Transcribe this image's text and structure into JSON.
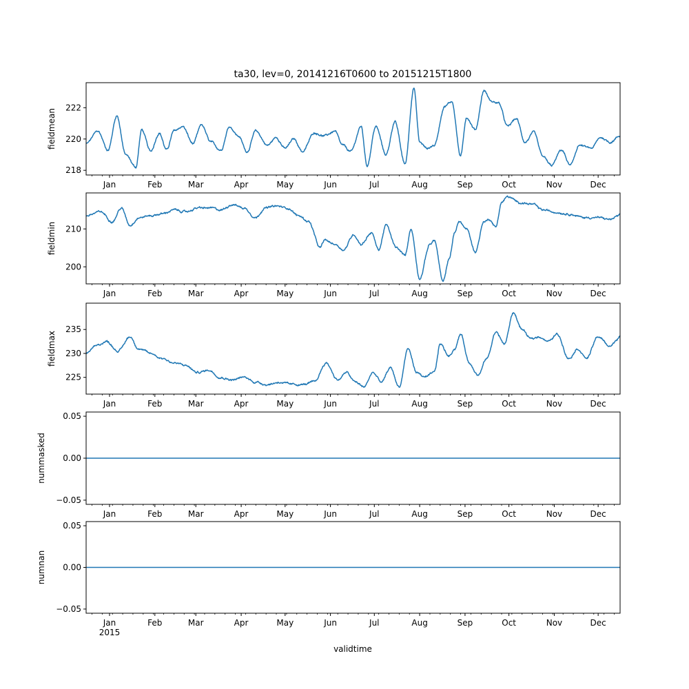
{
  "figure": {
    "title": "ta30, lev=0, 20141216T0600 to 20151215T1800",
    "xlabel": "validtime",
    "year_label": "2015"
  },
  "colors": {
    "line": "#1f77b4",
    "axes": "#000000",
    "background": "#ffffff"
  },
  "chart_data": [
    {
      "type": "line",
      "ylabel": "fieldmean",
      "ylim": [
        217.7,
        223.6
      ],
      "yticks": [
        {
          "v": 218,
          "label": "218"
        },
        {
          "v": 220,
          "label": "220"
        },
        {
          "v": 222,
          "label": "222"
        }
      ],
      "series": [
        {
          "name": "fieldmean",
          "x_day": [
            0,
            8,
            15,
            21,
            27,
            34,
            38,
            44,
            50,
            55,
            60,
            66,
            73,
            79,
            85,
            92,
            98,
            104,
            110,
            116,
            124,
            130,
            136,
            142,
            148,
            156,
            163,
            170,
            175,
            181,
            188,
            192,
            198,
            205,
            211,
            218,
            224,
            228,
            233,
            238,
            245,
            250,
            256,
            260,
            266,
            272,
            277,
            282,
            288,
            294,
            300,
            306,
            312,
            318,
            325,
            331,
            337,
            345,
            352,
            358,
            365
          ],
          "y": [
            219.7,
            220.5,
            219.3,
            221.5,
            219.0,
            218.2,
            220.6,
            219.2,
            220.4,
            219.3,
            220.5,
            220.8,
            219.7,
            220.9,
            219.8,
            219.3,
            220.8,
            220.2,
            219.2,
            220.5,
            219.6,
            220.1,
            219.4,
            220.0,
            219.2,
            220.4,
            220.2,
            220.5,
            219.6,
            219.2,
            220.8,
            218.3,
            220.8,
            219.0,
            221.1,
            218.4,
            223.3,
            219.8,
            219.4,
            219.6,
            222.1,
            222.4,
            218.9,
            221.4,
            220.6,
            223.1,
            222.4,
            222.3,
            220.8,
            221.3,
            219.8,
            220.4,
            218.9,
            218.3,
            219.3,
            218.3,
            219.6,
            219.4,
            220.1,
            219.8,
            220.2
          ]
        }
      ]
    },
    {
      "type": "line",
      "ylabel": "fieldmin",
      "ylim": [
        195.5,
        219.5
      ],
      "yticks": [
        {
          "v": 200,
          "label": "200"
        },
        {
          "v": 210,
          "label": "210"
        }
      ],
      "series": [
        {
          "name": "fieldmin",
          "x_day": [
            0,
            10,
            18,
            24,
            30,
            36,
            44,
            52,
            60,
            68,
            76,
            85,
            92,
            100,
            108,
            116,
            122,
            130,
            138,
            145,
            152,
            160,
            163,
            170,
            176,
            183,
            188,
            195,
            200,
            205,
            212,
            218,
            222,
            228,
            235,
            238,
            244,
            248,
            252,
            255,
            260,
            266,
            272,
            276,
            280,
            284,
            288,
            296,
            305,
            312,
            320,
            330,
            340,
            350,
            358,
            365
          ],
          "y": [
            213.5,
            214.5,
            212.0,
            215.5,
            211.0,
            213.0,
            213.5,
            214.0,
            215.0,
            214.5,
            215.5,
            215.5,
            215.0,
            216.5,
            215.5,
            213.0,
            215.5,
            216.0,
            215.5,
            213.5,
            212.0,
            205.0,
            207.0,
            206.0,
            204.5,
            208.5,
            206.0,
            209.0,
            204.5,
            211.0,
            205.0,
            203.0,
            210.0,
            197.0,
            206.0,
            207.0,
            196.0,
            202.0,
            209.0,
            212.0,
            210.0,
            204.0,
            212.0,
            212.5,
            210.5,
            217.0,
            218.5,
            217.0,
            216.5,
            215.0,
            214.5,
            214.0,
            213.0,
            213.0,
            212.5,
            213.5
          ]
        }
      ]
    },
    {
      "type": "line",
      "ylabel": "fieldmax",
      "ylim": [
        221.5,
        240.5
      ],
      "yticks": [
        {
          "v": 225,
          "label": "225"
        },
        {
          "v": 230,
          "label": "230"
        },
        {
          "v": 235,
          "label": "235"
        }
      ],
      "series": [
        {
          "name": "fieldmax",
          "x_day": [
            0,
            6,
            14,
            22,
            30,
            36,
            44,
            52,
            60,
            68,
            76,
            84,
            92,
            100,
            108,
            116,
            124,
            132,
            140,
            148,
            156,
            164,
            172,
            178,
            184,
            190,
            196,
            202,
            208,
            214,
            220,
            226,
            232,
            238,
            242,
            248,
            252,
            256,
            262,
            268,
            274,
            280,
            286,
            292,
            298,
            304,
            310,
            316,
            322,
            330,
            336,
            342,
            350,
            358,
            365
          ],
          "y": [
            230.0,
            231.5,
            232.5,
            230.5,
            233.5,
            231.0,
            230.0,
            229.0,
            228.0,
            227.5,
            226.0,
            226.5,
            225.0,
            224.5,
            225.0,
            224.0,
            223.5,
            224.0,
            223.5,
            223.5,
            224.0,
            228.0,
            224.5,
            226.0,
            224.0,
            223.0,
            226.0,
            224.0,
            227.0,
            223.0,
            231.0,
            226.0,
            225.0,
            226.0,
            232.0,
            229.5,
            231.0,
            234.0,
            228.0,
            225.5,
            229.0,
            234.5,
            232.0,
            238.5,
            235.0,
            233.0,
            233.5,
            232.5,
            234.0,
            229.0,
            231.0,
            229.0,
            233.5,
            231.5,
            233.5
          ]
        }
      ]
    },
    {
      "type": "line",
      "ylabel": "nummasked",
      "ylim": [
        -0.055,
        0.055
      ],
      "yticks": [
        {
          "v": -0.05,
          "label": "−0.05"
        },
        {
          "v": 0,
          "label": "0.00"
        },
        {
          "v": 0.05,
          "label": "0.05"
        }
      ],
      "series": [
        {
          "name": "nummasked",
          "x_day": [
            0,
            365
          ],
          "y": [
            0,
            0
          ]
        }
      ]
    },
    {
      "type": "line",
      "ylabel": "numnan",
      "ylim": [
        -0.055,
        0.055
      ],
      "yticks": [
        {
          "v": -0.05,
          "label": "−0.05"
        },
        {
          "v": 0,
          "label": "0.00"
        },
        {
          "v": 0.05,
          "label": "0.05"
        }
      ],
      "series": [
        {
          "name": "numnan",
          "x_day": [
            0,
            365
          ],
          "y": [
            0,
            0
          ]
        }
      ]
    }
  ],
  "x_axis": {
    "range_days": [
      0,
      365
    ],
    "month_ticks": [
      {
        "day": 16,
        "label": "Jan"
      },
      {
        "day": 47,
        "label": "Feb"
      },
      {
        "day": 75,
        "label": "Mar"
      },
      {
        "day": 106,
        "label": "Apr"
      },
      {
        "day": 136,
        "label": "May"
      },
      {
        "day": 167,
        "label": "Jun"
      },
      {
        "day": 197,
        "label": "Jul"
      },
      {
        "day": 228,
        "label": "Aug"
      },
      {
        "day": 259,
        "label": "Sep"
      },
      {
        "day": 289,
        "label": "Oct"
      },
      {
        "day": 320,
        "label": "Nov"
      },
      {
        "day": 350,
        "label": "Dec"
      }
    ]
  }
}
